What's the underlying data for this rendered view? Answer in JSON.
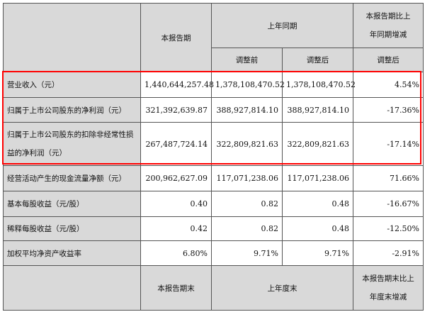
{
  "header": {
    "current_period": "本报告期",
    "prior_period": "上年同期",
    "change": "本报告期比上年同期增减",
    "before_adjust": "调整前",
    "after_adjust": "调整后",
    "change_after": "调整后"
  },
  "rows": [
    {
      "label": "营业收入（元）",
      "current": "1,440,644,257.48",
      "before": "1,378,108,470.52",
      "after": "1,378,108,470.52",
      "change": "4.54%"
    },
    {
      "label": "归属于上市公司股东的净利润（元）",
      "current": "321,392,639.87",
      "before": "388,927,814.10",
      "after": "388,927,814.10",
      "change": "-17.36%"
    },
    {
      "label": "归属于上市公司股东的扣除非经常性损益的净利润（元）",
      "current": "267,487,724.14",
      "before": "322,809,821.63",
      "after": "322,809,821.63",
      "change": "-17.14%"
    },
    {
      "label": "经营活动产生的现金流量净额（元）",
      "current": "200,962,627.09",
      "before": "117,071,238.06",
      "after": "117,071,238.06",
      "change": "71.66%"
    },
    {
      "label": "基本每股收益（元/股）",
      "current": "0.40",
      "before": "0.82",
      "after": "0.48",
      "change": "-16.67%"
    },
    {
      "label": "稀释每股收益（元/股）",
      "current": "0.42",
      "before": "0.82",
      "after": "0.48",
      "change": "-12.50%"
    },
    {
      "label": "加权平均净资产收益率",
      "current": "6.80%",
      "before": "9.71%",
      "after": "9.71%",
      "change": "-2.91%"
    }
  ],
  "footer": {
    "period_end": "本报告期末",
    "prior_year_end": "上年度末",
    "change": "本报告期末比上年度末增减"
  },
  "highlight_color": "#ff0000"
}
